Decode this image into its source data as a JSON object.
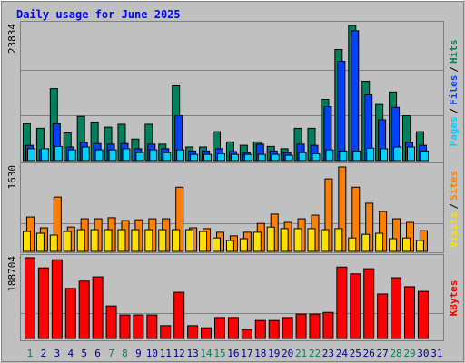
{
  "chart_data": {
    "type": "bar",
    "title": "Daily usage for June 2025",
    "legend_separator": "/",
    "categories": [
      "1",
      "2",
      "3",
      "4",
      "5",
      "6",
      "7",
      "8",
      "9",
      "10",
      "11",
      "12",
      "13",
      "14",
      "15",
      "16",
      "17",
      "18",
      "19",
      "20",
      "21",
      "22",
      "23",
      "24",
      "25",
      "26",
      "27",
      "28",
      "29",
      "30",
      "31"
    ],
    "category_colors": [
      "#00805c",
      "#000080",
      "#000080",
      "#000080",
      "#000080",
      "#000080",
      "#00805c",
      "#00805c",
      "#000080",
      "#000080",
      "#000080",
      "#000080",
      "#000080",
      "#00805c",
      "#00805c",
      "#000080",
      "#000080",
      "#000080",
      "#000080",
      "#000080",
      "#00805c",
      "#00805c",
      "#000080",
      "#000080",
      "#000080",
      "#000080",
      "#000080",
      "#00805c",
      "#00805c",
      "#000080",
      "#000080"
    ],
    "panels": [
      {
        "ylim": [
          0,
          23834
        ],
        "yticks": [
          23834
        ],
        "series": [
          {
            "name": "Hits",
            "color": "#00805c",
            "values": [
              6500,
              5700,
              12700,
              4900,
              7800,
              6800,
              5900,
              6400,
              3800,
              6400,
              2900,
              13200,
              2400,
              2400,
              5100,
              3300,
              2700,
              3300,
              2500,
              2100,
              5700,
              5700,
              10800,
              19600,
              23834,
              14000,
              9900,
              12100,
              7900,
              5100,
              null
            ]
          },
          {
            "name": "Files",
            "color": "#0040ff",
            "values": [
              2700,
              1900,
              6500,
              2400,
              3200,
              3000,
              2900,
              3000,
              2100,
              2900,
              2100,
              7900,
              1700,
              1700,
              2100,
              1600,
              1400,
              2900,
              1700,
              1400,
              2900,
              2700,
              9500,
              17500,
              22900,
              11600,
              7200,
              9400,
              3200,
              2700,
              null
            ]
          },
          {
            "name": "Pages",
            "color": "#00d0ff",
            "values": [
              2100,
              2100,
              2500,
              1900,
              2400,
              1900,
              1900,
              2100,
              1400,
              1900,
              1400,
              1900,
              1100,
              1100,
              1200,
              1100,
              1100,
              1100,
              1100,
              950,
              1400,
              1200,
              1900,
              1700,
              1700,
              2200,
              2100,
              2400,
              2400,
              1700,
              null
            ]
          }
        ]
      },
      {
        "ylim": [
          0,
          1630
        ],
        "yticks": [
          1630
        ],
        "series": [
          {
            "name": "Sites",
            "color": "#ff8000",
            "values": [
              665,
              455,
              1050,
              470,
              630,
              630,
              650,
              595,
              610,
              630,
              630,
              1240,
              455,
              440,
              370,
              300,
              370,
              540,
              720,
              560,
              630,
              700,
              1400,
              1630,
              1240,
              930,
              770,
              630,
              560,
              400,
              null
            ]
          },
          {
            "name": "Visits",
            "color": "#ffe000",
            "values": [
              385,
              350,
              315,
              385,
              420,
              420,
              420,
              420,
              420,
              420,
              420,
              420,
              420,
              385,
              260,
              210,
              245,
              370,
              470,
              440,
              440,
              440,
              420,
              440,
              260,
              330,
              350,
              245,
              260,
              210,
              null
            ]
          }
        ]
      },
      {
        "ylim": [
          0,
          188704
        ],
        "yticks": [
          188704
        ],
        "series": [
          {
            "name": "KBytes",
            "color": "#ff0000",
            "values": [
              188704,
              165000,
              184000,
              117000,
              134000,
              144000,
              76000,
              55000,
              55000,
              55000,
              30000,
              108000,
              30000,
              25000,
              49000,
              49000,
              21000,
              42000,
              42000,
              49000,
              57000,
              57000,
              61000,
              167000,
              151000,
              163000,
              104000,
              142000,
              121000,
              110000,
              null
            ]
          }
        ]
      }
    ]
  }
}
